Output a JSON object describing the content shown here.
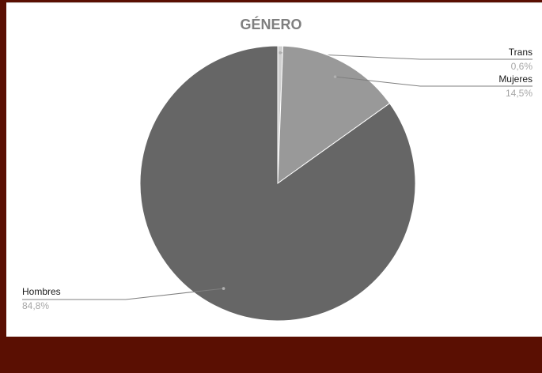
{
  "chart_data": {
    "type": "pie",
    "title": "GÉNERO",
    "categories": [
      "Trans",
      "Mujeres",
      "Hombres"
    ],
    "values": [
      0.6,
      14.5,
      84.8
    ],
    "value_labels": [
      "0,6%",
      "14,5%",
      "84,8%"
    ],
    "colors": [
      "#d0d0d0",
      "#999999",
      "#666666"
    ],
    "unit": "%",
    "legend": "none"
  },
  "colors": {
    "frame": "#5a0f02",
    "chart_background": "#ffffff",
    "title": "#7f7f7f",
    "leader_line": "#7f7f7f"
  }
}
